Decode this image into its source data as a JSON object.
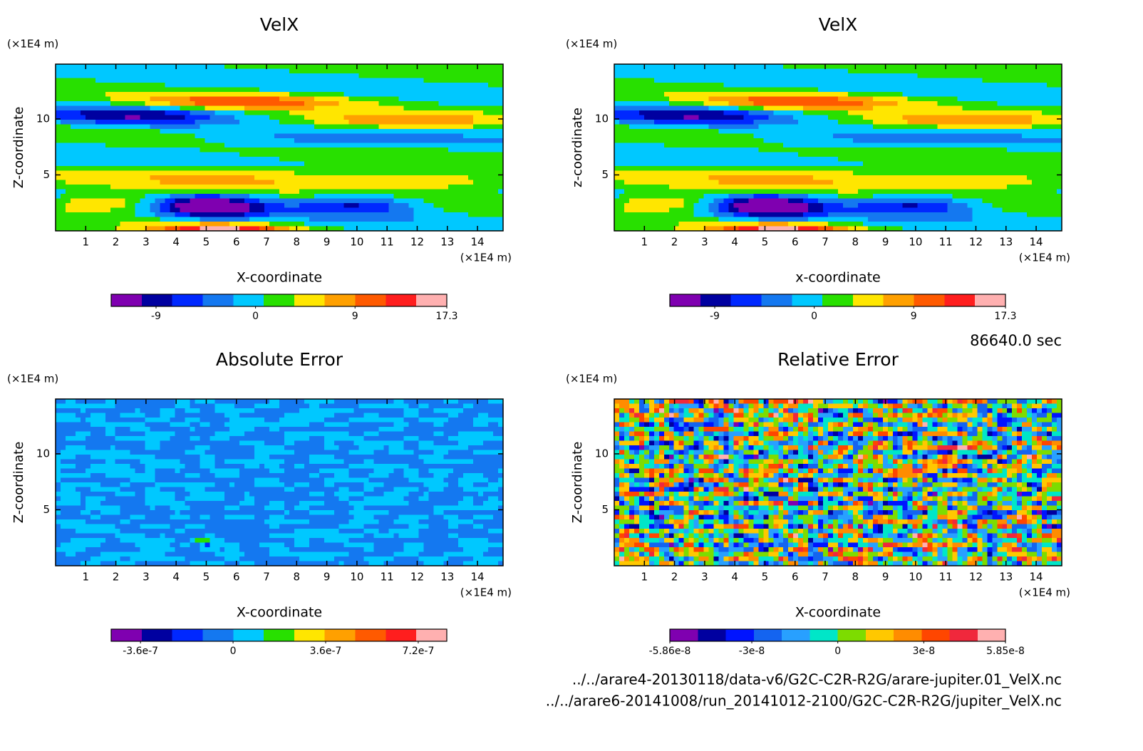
{
  "chart_data": [
    {
      "type": "contour",
      "title": "VelX",
      "xlabel": "X-coordinate",
      "ylabel": "Z-coordinate",
      "x_unit": "(×1E4 m)",
      "y_unit": "(×1E4 m)",
      "xlim": [
        0,
        14.85
      ],
      "ylim": [
        0,
        14.9
      ],
      "xticks": [
        1,
        2,
        3,
        4,
        5,
        6,
        7,
        8,
        9,
        10,
        11,
        12,
        13,
        14
      ],
      "yticks": [
        5,
        10
      ],
      "colorbar": {
        "lim": [
          -13.06,
          17.3
        ],
        "ticks": [
          -9,
          0,
          9,
          17.3
        ],
        "colors": [
          "#7f00b0",
          "#0000a0",
          "#0028ff",
          "#1478f0",
          "#00c8ff",
          "#28e000",
          "#ffe600",
          "#ffa000",
          "#ff5a00",
          "#ff1e1e",
          "#ffb0b0"
        ]
      }
    },
    {
      "type": "contour",
      "title": "VelX",
      "xlabel": "x-coordinate",
      "ylabel": "z-coordinate",
      "x_unit": "(×1E4 m)",
      "y_unit": "(×1E4 m)",
      "xlim": [
        0,
        14.85
      ],
      "ylim": [
        0,
        14.9
      ],
      "xticks": [
        1,
        2,
        3,
        4,
        5,
        6,
        7,
        8,
        9,
        10,
        11,
        12,
        13,
        14
      ],
      "yticks": [
        5,
        10
      ],
      "colorbar": {
        "lim": [
          -13.06,
          17.3
        ],
        "ticks": [
          -9,
          0,
          9,
          17.3
        ],
        "colors": [
          "#7f00b0",
          "#0000a0",
          "#0028ff",
          "#1478f0",
          "#00c8ff",
          "#28e000",
          "#ffe600",
          "#ffa000",
          "#ff5a00",
          "#ff1e1e",
          "#ffb0b0"
        ]
      }
    },
    {
      "type": "contour",
      "title": "Absolute Error",
      "xlabel": "X-coordinate",
      "ylabel": "Z-coordinate",
      "x_unit": "(×1E4 m)",
      "y_unit": "(×1E4 m)",
      "xlim": [
        0,
        14.85
      ],
      "ylim": [
        0,
        14.9
      ],
      "xticks": [
        1,
        2,
        3,
        4,
        5,
        6,
        7,
        8,
        9,
        10,
        11,
        12,
        13,
        14
      ],
      "yticks": [
        5,
        10
      ],
      "colorbar": {
        "lim": [
          -4.74e-07,
          8.31e-07
        ],
        "ticks": [
          -3.6e-07,
          0,
          3.6e-07,
          7.2e-07
        ],
        "colors": [
          "#7f00b0",
          "#0000a0",
          "#0028ff",
          "#1478f0",
          "#00c8ff",
          "#28e000",
          "#ffe600",
          "#ffa000",
          "#ff5a00",
          "#ff1e1e",
          "#ffb0b0"
        ]
      }
    },
    {
      "type": "contour",
      "title": "Relative Error",
      "xlabel": "X-coordinate",
      "ylabel": "Z-coordinate",
      "x_unit": "(×1E4 m)",
      "y_unit": "(×1E4 m)",
      "xlim": [
        0,
        14.85
      ],
      "ylim": [
        0,
        14.9
      ],
      "xticks": [
        1,
        2,
        3,
        4,
        5,
        6,
        7,
        8,
        9,
        10,
        11,
        12,
        13,
        14
      ],
      "yticks": [
        5,
        10
      ],
      "colorbar": {
        "lim": [
          -5.86e-08,
          5.85e-08
        ],
        "ticks": [
          -5.86e-08,
          -3e-08,
          0,
          3e-08,
          5.85e-08
        ],
        "colors": [
          "#7f00b0",
          "#0000a0",
          "#0014ff",
          "#1464f0",
          "#28a0ff",
          "#00e6c8",
          "#7ddc00",
          "#ffc800",
          "#ff8c00",
          "#ff4600",
          "#f0283c",
          "#ffb0b0"
        ]
      }
    }
  ],
  "time": "86640.0 sec",
  "files": [
    "../../arare4-20130118/data-v6/G2C-C2R-R2G/arare-jupiter.01_VelX.nc",
    "../../arare6-20141008/run_20141012-2100/G2C-C2R-R2G/jupiter_VelX.nc"
  ]
}
